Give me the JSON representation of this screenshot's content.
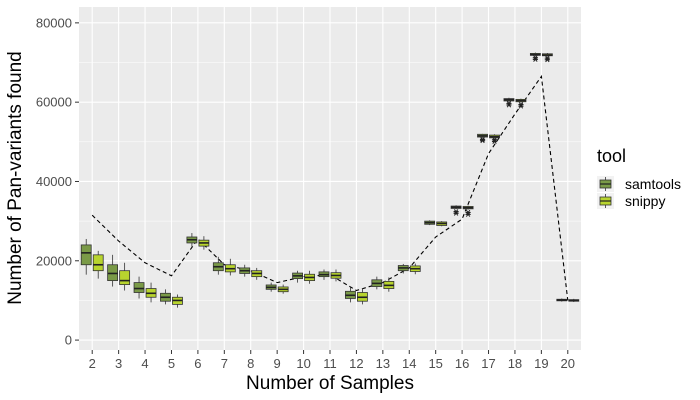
{
  "chart_data": {
    "type": "boxplot",
    "xlabel": "Number of Samples",
    "ylabel": "Number of Pan-variants found",
    "ylim": [
      -2500,
      84000
    ],
    "yticks": [
      0,
      20000,
      40000,
      60000,
      80000
    ],
    "ytick_labels": [
      "0",
      "20000",
      "40000",
      "60000",
      "80000"
    ],
    "categories": [
      "2",
      "3",
      "4",
      "5",
      "6",
      "7",
      "8",
      "9",
      "10",
      "11",
      "12",
      "13",
      "14",
      "15",
      "16",
      "17",
      "18",
      "19",
      "20"
    ],
    "grid": true,
    "legend": {
      "title": "tool",
      "position": "right",
      "entries": [
        {
          "label": "samtools",
          "color": "#7a9a47"
        },
        {
          "label": "snippy",
          "color": "#b8d42e"
        }
      ]
    },
    "series": [
      {
        "name": "samtools",
        "color": "#7a9a47",
        "boxes": [
          {
            "q1": 19000,
            "median": 22000,
            "q3": 24000,
            "min": 16500,
            "max": 25500
          },
          {
            "q1": 15000,
            "median": 16800,
            "q3": 19000,
            "min": 13500,
            "max": 21500
          },
          {
            "q1": 12000,
            "median": 13000,
            "q3": 14500,
            "min": 10500,
            "max": 16000
          },
          {
            "q1": 9800,
            "median": 10800,
            "q3": 11800,
            "min": 9000,
            "max": 12800
          },
          {
            "q1": 24500,
            "median": 25300,
            "q3": 26000,
            "min": 23500,
            "max": 27000
          },
          {
            "q1": 17500,
            "median": 18500,
            "q3": 19500,
            "min": 16500,
            "max": 21000
          },
          {
            "q1": 16800,
            "median": 17500,
            "q3": 18200,
            "min": 16000,
            "max": 19000
          },
          {
            "q1": 12800,
            "median": 13300,
            "q3": 13900,
            "min": 12200,
            "max": 14500
          },
          {
            "q1": 15500,
            "median": 16200,
            "q3": 16900,
            "min": 14500,
            "max": 17500
          },
          {
            "q1": 16000,
            "median": 16500,
            "q3": 17200,
            "min": 15200,
            "max": 17800
          },
          {
            "q1": 10500,
            "median": 11300,
            "q3": 12300,
            "min": 9500,
            "max": 13500
          },
          {
            "q1": 13500,
            "median": 14300,
            "q3": 15200,
            "min": 12800,
            "max": 16000
          },
          {
            "q1": 17500,
            "median": 18200,
            "q3": 18800,
            "min": 16800,
            "max": 19200
          },
          {
            "q1": 29200,
            "median": 29600,
            "q3": 30000,
            "min": 29000,
            "max": 30200
          },
          {
            "q1": 33200,
            "median": 33500,
            "q3": 33800,
            "min": 33000,
            "max": 34000,
            "outliers": [
              32000,
              32400
            ]
          },
          {
            "q1": 51200,
            "median": 51500,
            "q3": 51900,
            "min": 51000,
            "max": 52000,
            "outliers": [
              50300,
              50600
            ]
          },
          {
            "q1": 60300,
            "median": 60600,
            "q3": 60900,
            "min": 60100,
            "max": 61100,
            "outliers": [
              59300,
              59700
            ]
          },
          {
            "q1": 71800,
            "median": 72000,
            "q3": 72300,
            "min": 71600,
            "max": 72500,
            "outliers": [
              70800,
              71200
            ]
          },
          {
            "q1": 9900,
            "median": 10100,
            "q3": 10300,
            "min": 9700,
            "max": 10500
          }
        ]
      },
      {
        "name": "snippy",
        "color": "#b8d42e",
        "boxes": [
          {
            "q1": 17500,
            "median": 19000,
            "q3": 21500,
            "min": 15500,
            "max": 22500
          },
          {
            "q1": 14000,
            "median": 15000,
            "q3": 17500,
            "min": 12500,
            "max": 19500
          },
          {
            "q1": 10800,
            "median": 11800,
            "q3": 13000,
            "min": 9500,
            "max": 14500
          },
          {
            "q1": 9000,
            "median": 10000,
            "q3": 10800,
            "min": 8200,
            "max": 11500
          },
          {
            "q1": 23700,
            "median": 24500,
            "q3": 25200,
            "min": 22800,
            "max": 26200
          },
          {
            "q1": 17200,
            "median": 18000,
            "q3": 19000,
            "min": 16300,
            "max": 20500
          },
          {
            "q1": 16000,
            "median": 16800,
            "q3": 17500,
            "min": 15200,
            "max": 18200
          },
          {
            "q1": 12200,
            "median": 12800,
            "q3": 13400,
            "min": 11700,
            "max": 14000
          },
          {
            "q1": 15000,
            "median": 15800,
            "q3": 16600,
            "min": 14200,
            "max": 17500
          },
          {
            "q1": 15600,
            "median": 16300,
            "q3": 17000,
            "min": 14800,
            "max": 17800
          },
          {
            "q1": 9800,
            "median": 10800,
            "q3": 12000,
            "min": 9000,
            "max": 13000
          },
          {
            "q1": 13000,
            "median": 13800,
            "q3": 14800,
            "min": 12200,
            "max": 15800
          },
          {
            "q1": 17300,
            "median": 18000,
            "q3": 18700,
            "min": 16600,
            "max": 19300
          },
          {
            "q1": 28900,
            "median": 29400,
            "q3": 29800,
            "min": 28700,
            "max": 30000
          },
          {
            "q1": 33100,
            "median": 33400,
            "q3": 33700,
            "min": 32900,
            "max": 33900,
            "outliers": [
              31700,
              32200
            ]
          },
          {
            "q1": 51000,
            "median": 51300,
            "q3": 51700,
            "min": 50800,
            "max": 51900,
            "outliers": [
              50100,
              50500
            ]
          },
          {
            "q1": 60100,
            "median": 60400,
            "q3": 60700,
            "min": 59900,
            "max": 60900,
            "outliers": [
              59000,
              59400
            ]
          },
          {
            "q1": 71700,
            "median": 71900,
            "q3": 72200,
            "min": 71500,
            "max": 72400,
            "outliers": [
              70700,
              71100
            ]
          },
          {
            "q1": 9800,
            "median": 10000,
            "q3": 10200,
            "min": 9600,
            "max": 10400
          }
        ]
      }
    ],
    "dashed_line": {
      "style": "dashed",
      "values": [
        31500,
        25000,
        19500,
        16200,
        25500,
        19000,
        17500,
        14500,
        16000,
        16500,
        12500,
        14500,
        18200,
        26000,
        30500,
        47000,
        57000,
        66500,
        10000
      ]
    }
  }
}
